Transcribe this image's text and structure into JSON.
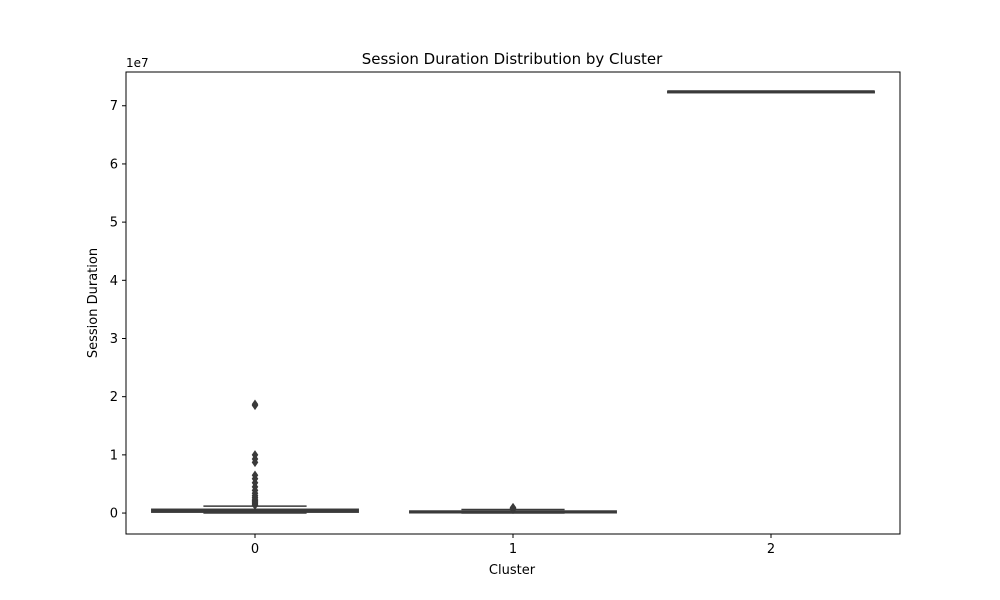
{
  "chart_data": {
    "type": "box",
    "title": "Session Duration Distribution by Cluster",
    "xlabel": "Cluster",
    "ylabel": "Session Duration",
    "y_offset_label": "1e7",
    "y_scale": 10000000,
    "categories": [
      "0",
      "1",
      "2"
    ],
    "ylim": [
      -3600000,
      75800000
    ],
    "y_ticks": [
      0,
      10000000,
      20000000,
      30000000,
      40000000,
      50000000,
      60000000,
      70000000
    ],
    "y_tick_labels": [
      "0",
      "1",
      "2",
      "3",
      "4",
      "5",
      "6",
      "7"
    ],
    "grid": false,
    "box_color": "#3a3a3a",
    "boxes": [
      {
        "category": "0",
        "min": 0,
        "q1": 150000,
        "median": 350000,
        "q3": 650000,
        "max": 1200000,
        "outliers": [
          1350000,
          1550000,
          1750000,
          1950000,
          2150000,
          2400000,
          2700000,
          3000000,
          3400000,
          3900000,
          4500000,
          5200000,
          5900000,
          6500000,
          8700000,
          9300000,
          10000000,
          18500000,
          18700000
        ]
      },
      {
        "category": "1",
        "min": 0,
        "q1": 50000,
        "median": 200000,
        "q3": 350000,
        "max": 600000,
        "outliers": [
          650000,
          700000,
          780000,
          850000,
          950000
        ]
      },
      {
        "category": "2",
        "min": 72500000,
        "q1": 72500000,
        "median": 72500000,
        "q3": 72500000,
        "max": 72500000,
        "outliers": []
      }
    ]
  }
}
